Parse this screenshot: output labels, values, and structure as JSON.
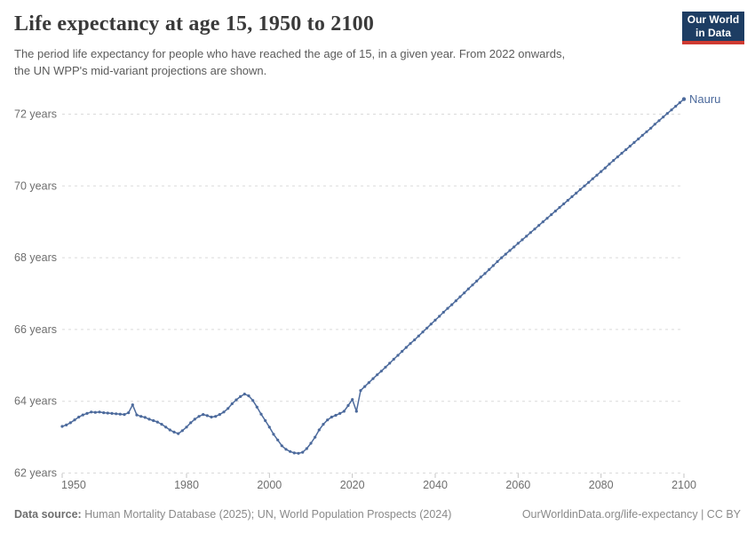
{
  "header": {
    "title": "Life expectancy at age 15, 1950 to 2100",
    "subtitle_line1": "The period life expectancy for people who have reached the age of 15, in a given year. From 2022 onwards,",
    "subtitle_line2": "the UN WPP's mid-variant projections are shown.",
    "logo_line1": "Our World",
    "logo_line2": "in Data"
  },
  "footer": {
    "datasource_label": "Data source:",
    "datasource_value": " Human Mortality Database (2025); UN, World Population Prospects (2024)",
    "link": "OurWorldinData.org/life-expectancy",
    "license": " | CC BY"
  },
  "colors": {
    "line": "#4c6a9c",
    "grid": "#dadada",
    "tick": "#c4c4c4",
    "axis_text": "#6e6e6e",
    "logo_bg": "#1d3d63",
    "logo_red": "#cf3a31"
  },
  "chart_data": {
    "type": "line",
    "title": "Life expectancy at age 15, 1950 to 2100",
    "entity_label": "Nauru",
    "x_ticks": [
      1950,
      1980,
      2000,
      2020,
      2040,
      2060,
      2080,
      2100
    ],
    "x_tick_labels": [
      "1950",
      "1980",
      "2000",
      "2020",
      "2040",
      "2060",
      "2080",
      "2100"
    ],
    "y_ticks": [
      62,
      64,
      66,
      68,
      70,
      72
    ],
    "y_tick_labels": [
      "62 years",
      "64 years",
      "66 years",
      "68 years",
      "70 years",
      "72 years"
    ],
    "x_range": [
      1950,
      2100
    ],
    "y_range": [
      62,
      72.7
    ],
    "grid": "horizontal-dashed",
    "legend_position": "end-of-line-label",
    "projection_start_year": 2022,
    "series": [
      {
        "name": "Nauru",
        "x_start": 1950,
        "x_step": 1,
        "values": [
          63.3,
          63.34,
          63.4,
          63.48,
          63.56,
          63.62,
          63.66,
          63.7,
          63.69,
          63.7,
          63.68,
          63.67,
          63.66,
          63.65,
          63.64,
          63.63,
          63.68,
          63.9,
          63.62,
          63.58,
          63.55,
          63.5,
          63.46,
          63.42,
          63.36,
          63.28,
          63.2,
          63.14,
          63.1,
          63.18,
          63.28,
          63.4,
          63.5,
          63.58,
          63.63,
          63.6,
          63.56,
          63.58,
          63.63,
          63.7,
          63.8,
          63.93,
          64.04,
          64.13,
          64.2,
          64.15,
          64.02,
          63.84,
          63.64,
          63.46,
          63.28,
          63.08,
          62.92,
          62.76,
          62.66,
          62.6,
          62.56,
          62.55,
          62.58,
          62.68,
          62.83,
          63.0,
          63.2,
          63.36,
          63.48,
          63.56,
          63.61,
          63.66,
          63.72,
          63.88,
          64.05,
          63.72,
          64.3,
          64.41,
          64.52,
          64.63,
          64.74,
          64.84,
          64.95,
          65.06,
          65.17,
          65.28,
          65.39,
          65.5,
          65.61,
          65.71,
          65.82,
          65.93,
          66.04,
          66.15,
          66.26,
          66.37,
          66.48,
          66.59,
          66.69,
          66.8,
          66.91,
          67.02,
          67.13,
          67.24,
          67.35,
          67.46,
          67.56,
          67.67,
          67.78,
          67.89,
          68.0,
          68.1,
          68.2,
          68.3,
          68.4,
          68.5,
          68.6,
          68.7,
          68.8,
          68.9,
          69.0,
          69.1,
          69.2,
          69.3,
          69.4,
          69.5,
          69.6,
          69.7,
          69.8,
          69.9,
          70.0,
          70.1,
          70.2,
          70.3,
          70.4,
          70.5,
          70.61,
          70.71,
          70.81,
          70.91,
          71.01,
          71.11,
          71.21,
          71.31,
          71.41,
          71.51,
          71.61,
          71.72,
          71.82,
          71.92,
          72.02,
          72.12,
          72.22,
          72.32,
          72.42
        ]
      }
    ]
  }
}
